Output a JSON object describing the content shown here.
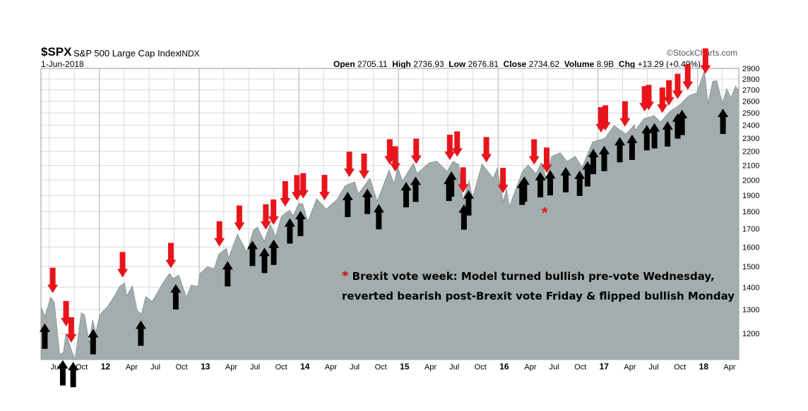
{
  "header": {
    "ticker": "$SPX",
    "index_name": "S&P 500 Large Cap Index",
    "index_type": "INDX",
    "date": "1-Jun-2018",
    "logo": "©StockCharts.com",
    "open_label": "Open",
    "open": "2705.11",
    "high_label": "High",
    "high": "2736.93",
    "low_label": "Low",
    "low": "2676.81",
    "close_label": "Close",
    "close": "2734.62",
    "volume_label": "Volume",
    "volume": "8.9B",
    "chg_label": "Chg",
    "chg": "+13.29 (+0.49%)"
  },
  "annotation": {
    "star": "*",
    "line1": "Brexit vote week: Model turned bullish pre-vote Wednesday,",
    "line2": "reverted bearish post-Brexit vote Friday & flipped bullish Monday"
  },
  "colors": {
    "area_fill": "#a3adad",
    "area_stroke": "#8d9999",
    "bearish_arrow": "#e8141c",
    "bullish_arrow": "#000000",
    "grid": "#d9d9d9",
    "year_grid": "#b0b0b0"
  },
  "chart_data": {
    "type": "area",
    "title": "$SPX S&P 500 Large Cap Index",
    "scale": "log",
    "grid": true,
    "x_range": [
      "2011-06-01",
      "2018-06-01"
    ],
    "y_range": [
      1100,
      2900
    ],
    "y_ticks": [
      1200,
      1300,
      1400,
      1500,
      1600,
      1700,
      1800,
      1900,
      2000,
      2100,
      2200,
      2300,
      2400,
      2500,
      2600,
      2700,
      2800,
      2900
    ],
    "x_ticks": [
      {
        "date": "2011-07-01",
        "label": "Jul",
        "year": false
      },
      {
        "date": "2011-10-01",
        "label": "Oct",
        "year": false
      },
      {
        "date": "2012-01-01",
        "label": "12",
        "year": true
      },
      {
        "date": "2012-04-01",
        "label": "Apr",
        "year": false
      },
      {
        "date": "2012-07-01",
        "label": "Jul",
        "year": false
      },
      {
        "date": "2012-10-01",
        "label": "Oct",
        "year": false
      },
      {
        "date": "2013-01-01",
        "label": "13",
        "year": true
      },
      {
        "date": "2013-04-01",
        "label": "Apr",
        "year": false
      },
      {
        "date": "2013-07-01",
        "label": "Jul",
        "year": false
      },
      {
        "date": "2013-10-01",
        "label": "Oct",
        "year": false
      },
      {
        "date": "2014-01-01",
        "label": "14",
        "year": true
      },
      {
        "date": "2014-04-01",
        "label": "Apr",
        "year": false
      },
      {
        "date": "2014-07-01",
        "label": "Jul",
        "year": false
      },
      {
        "date": "2014-10-01",
        "label": "Oct",
        "year": false
      },
      {
        "date": "2015-01-01",
        "label": "15",
        "year": true
      },
      {
        "date": "2015-04-01",
        "label": "Apr",
        "year": false
      },
      {
        "date": "2015-07-01",
        "label": "Jul",
        "year": false
      },
      {
        "date": "2015-10-01",
        "label": "Oct",
        "year": false
      },
      {
        "date": "2016-01-01",
        "label": "16",
        "year": true
      },
      {
        "date": "2016-04-01",
        "label": "Apr",
        "year": false
      },
      {
        "date": "2016-07-01",
        "label": "Jul",
        "year": false
      },
      {
        "date": "2016-10-01",
        "label": "Oct",
        "year": false
      },
      {
        "date": "2017-01-01",
        "label": "17",
        "year": true
      },
      {
        "date": "2017-04-01",
        "label": "Apr",
        "year": false
      },
      {
        "date": "2017-07-01",
        "label": "Jul",
        "year": false
      },
      {
        "date": "2017-10-01",
        "label": "Oct",
        "year": false
      },
      {
        "date": "2018-01-01",
        "label": "18",
        "year": true
      },
      {
        "date": "2018-04-01",
        "label": "Apr",
        "year": false
      }
    ],
    "series": [
      {
        "name": "$SPX",
        "points": [
          [
            "2011-06-01",
            1310
          ],
          [
            "2011-06-15",
            1270
          ],
          [
            "2011-07-07",
            1353
          ],
          [
            "2011-07-20",
            1330
          ],
          [
            "2011-08-08",
            1120
          ],
          [
            "2011-08-22",
            1125
          ],
          [
            "2011-09-01",
            1200
          ],
          [
            "2011-09-22",
            1130
          ],
          [
            "2011-10-04",
            1100
          ],
          [
            "2011-10-27",
            1285
          ],
          [
            "2011-11-08",
            1275
          ],
          [
            "2011-11-25",
            1158
          ],
          [
            "2011-12-07",
            1255
          ],
          [
            "2011-12-19",
            1205
          ],
          [
            "2012-01-03",
            1277
          ],
          [
            "2012-01-31",
            1312
          ],
          [
            "2012-02-29",
            1366
          ],
          [
            "2012-03-15",
            1402
          ],
          [
            "2012-04-02",
            1419
          ],
          [
            "2012-04-10",
            1358
          ],
          [
            "2012-05-01",
            1405
          ],
          [
            "2012-05-18",
            1295
          ],
          [
            "2012-06-04",
            1280
          ],
          [
            "2012-06-19",
            1357
          ],
          [
            "2012-07-12",
            1334
          ],
          [
            "2012-08-01",
            1375
          ],
          [
            "2012-08-20",
            1418
          ],
          [
            "2012-09-14",
            1465
          ],
          [
            "2012-09-28",
            1440
          ],
          [
            "2012-10-18",
            1457
          ],
          [
            "2012-11-15",
            1353
          ],
          [
            "2012-12-03",
            1409
          ],
          [
            "2012-12-28",
            1402
          ],
          [
            "2013-01-02",
            1462
          ],
          [
            "2013-01-31",
            1498
          ],
          [
            "2013-02-25",
            1488
          ],
          [
            "2013-03-14",
            1563
          ],
          [
            "2013-04-11",
            1593
          ],
          [
            "2013-04-18",
            1541
          ],
          [
            "2013-05-21",
            1669
          ],
          [
            "2013-06-24",
            1573
          ],
          [
            "2013-07-19",
            1692
          ],
          [
            "2013-08-02",
            1709
          ],
          [
            "2013-08-27",
            1630
          ],
          [
            "2013-09-18",
            1725
          ],
          [
            "2013-10-08",
            1655
          ],
          [
            "2013-10-29",
            1771
          ],
          [
            "2013-11-27",
            1807
          ],
          [
            "2013-12-12",
            1775
          ],
          [
            "2013-12-31",
            1848
          ],
          [
            "2014-01-15",
            1848
          ],
          [
            "2014-02-03",
            1741
          ],
          [
            "2014-03-07",
            1878
          ],
          [
            "2014-04-11",
            1815
          ],
          [
            "2014-05-20",
            1872
          ],
          [
            "2014-06-20",
            1962
          ],
          [
            "2014-07-24",
            1987
          ],
          [
            "2014-08-07",
            1909
          ],
          [
            "2014-09-18",
            2011
          ],
          [
            "2014-10-15",
            1862
          ],
          [
            "2014-11-28",
            2067
          ],
          [
            "2014-12-16",
            1972
          ],
          [
            "2014-12-29",
            2090
          ],
          [
            "2015-01-15",
            1992
          ],
          [
            "2015-02-25",
            2115
          ],
          [
            "2015-03-10",
            2044
          ],
          [
            "2015-04-24",
            2117
          ],
          [
            "2015-05-21",
            2130
          ],
          [
            "2015-06-29",
            2057
          ],
          [
            "2015-07-20",
            2128
          ],
          [
            "2015-08-10",
            2104
          ],
          [
            "2015-08-25",
            1867
          ],
          [
            "2015-09-17",
            1990
          ],
          [
            "2015-09-29",
            1884
          ],
          [
            "2015-10-30",
            2079
          ],
          [
            "2015-11-03",
            2109
          ],
          [
            "2015-12-14",
            2012
          ],
          [
            "2015-12-29",
            2078
          ],
          [
            "2016-01-20",
            1859
          ],
          [
            "2016-02-01",
            1940
          ],
          [
            "2016-02-11",
            1829
          ],
          [
            "2016-03-31",
            2060
          ],
          [
            "2016-04-20",
            2102
          ],
          [
            "2016-05-19",
            2041
          ],
          [
            "2016-06-08",
            2119
          ],
          [
            "2016-06-27",
            2000
          ],
          [
            "2016-07-15",
            2162
          ],
          [
            "2016-08-15",
            2190
          ],
          [
            "2016-09-09",
            2128
          ],
          [
            "2016-10-10",
            2163
          ],
          [
            "2016-11-04",
            2085
          ],
          [
            "2016-12-13",
            2271
          ],
          [
            "2017-01-26",
            2296
          ],
          [
            "2017-03-01",
            2396
          ],
          [
            "2017-04-13",
            2329
          ],
          [
            "2017-05-15",
            2402
          ],
          [
            "2017-05-17",
            2357
          ],
          [
            "2017-06-19",
            2453
          ],
          [
            "2017-07-26",
            2477
          ],
          [
            "2017-08-18",
            2425
          ],
          [
            "2017-09-20",
            2508
          ],
          [
            "2017-10-31",
            2575
          ],
          [
            "2017-11-30",
            2647
          ],
          [
            "2017-12-29",
            2673
          ],
          [
            "2018-01-26",
            2872
          ],
          [
            "2018-02-08",
            2581
          ],
          [
            "2018-02-26",
            2779
          ],
          [
            "2018-03-12",
            2783
          ],
          [
            "2018-04-02",
            2581
          ],
          [
            "2018-04-18",
            2708
          ],
          [
            "2018-05-03",
            2629
          ],
          [
            "2018-05-21",
            2733
          ],
          [
            "2018-05-29",
            2689
          ],
          [
            "2018-06-01",
            2734
          ]
        ]
      }
    ],
    "bearish_arrows": [
      "2011-07-14",
      "2011-09-01",
      "2011-09-20",
      "2012-03-26",
      "2012-09-19",
      "2013-03-16",
      "2013-05-28",
      "2013-09-02",
      "2013-09-30",
      "2013-11-12",
      "2013-12-25",
      "2014-01-17",
      "2014-04-05",
      "2014-07-05",
      "2014-08-28",
      "2014-11-30",
      "2014-12-20",
      "2015-03-07",
      "2015-07-08",
      "2015-08-04",
      "2015-08-26",
      "2015-11-19",
      "2016-01-19",
      "2016-05-12",
      "2016-06-27",
      "2017-01-12",
      "2017-01-28",
      "2017-04-10",
      "2017-06-21",
      "2017-07-06",
      "2017-08-25",
      "2017-09-18",
      "2017-10-20",
      "2017-11-26",
      "2018-01-30"
    ],
    "bullish_arrows": [
      "2011-06-15",
      "2011-08-20",
      "2011-09-27",
      "2011-12-09",
      "2012-06-01",
      "2012-10-07",
      "2013-04-15",
      "2013-07-15",
      "2013-08-28",
      "2013-10-01",
      "2013-11-29",
      "2014-01-07",
      "2014-06-29",
      "2014-09-09",
      "2014-10-21",
      "2015-01-29",
      "2015-03-05",
      "2015-07-05",
      "2015-07-14",
      "2015-08-29",
      "2015-09-15",
      "2016-03-29",
      "2016-04-06",
      "2016-06-04",
      "2016-07-10",
      "2016-09-05",
      "2016-10-26",
      "2016-11-24",
      "2016-12-15",
      "2017-01-24",
      "2017-03-22",
      "2017-05-06",
      "2017-06-29",
      "2017-07-27",
      "2017-09-13",
      "2017-10-20",
      "2017-11-05",
      "2018-04-04"
    ],
    "brexit_marker": {
      "date": "2016-06-24",
      "symbol": "*"
    }
  }
}
